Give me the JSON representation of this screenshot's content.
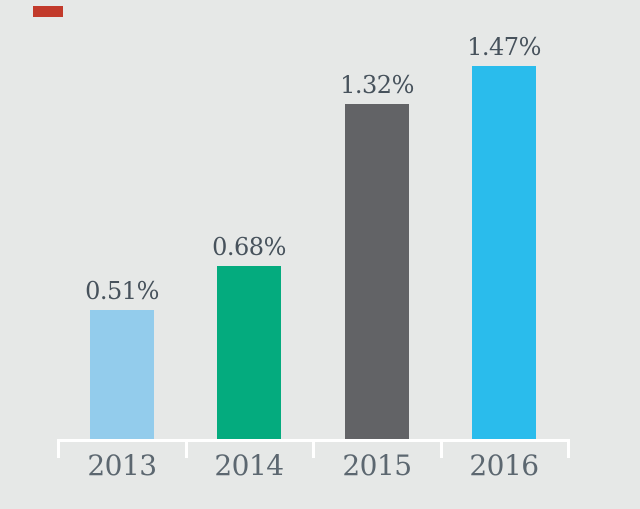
{
  "background": "#E6E8E7",
  "red_marker_color": "#C23A2B",
  "chart_data": {
    "type": "bar",
    "categories": [
      "2013",
      "2014",
      "2015",
      "2016"
    ],
    "values": [
      0.51,
      0.68,
      1.32,
      1.47
    ],
    "value_labels": [
      "0.51%",
      "0.68%",
      "1.32%",
      "1.47%"
    ],
    "bar_colors": [
      "#93CCEC",
      "#04AB7E",
      "#626366",
      "#2ABCEC"
    ],
    "title": "",
    "xlabel": "",
    "ylabel": "",
    "ylim": [
      0,
      1.6
    ],
    "grid": false,
    "legend": "none",
    "axis_color": "#FFFFFF",
    "value_label_color": "#47525C",
    "category_label_color": "#5C6770"
  }
}
